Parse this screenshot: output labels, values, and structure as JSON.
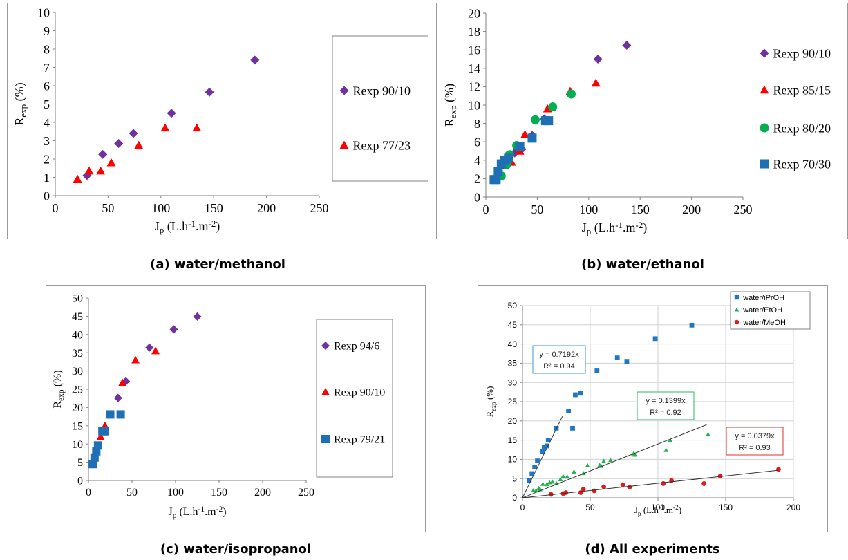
{
  "colors": {
    "purple": "#7030A0",
    "red": "#FF0000",
    "green": "#00B050",
    "blue": "#1F6FB5",
    "d_blue": "#1F77C8",
    "d_green": "#22B14C",
    "d_red": "#E31A1C",
    "box_blue": "#3C9BD6",
    "box_green": "#2EB85C",
    "box_red": "#E03030"
  },
  "chart_data": [
    {
      "id": "a",
      "type": "scatter",
      "caption": "(a) water/methanol",
      "xlabel_main": "J",
      "xlabel_sub": "p",
      "xlabel_rest": " (L.h",
      "xlabel_sup1": "-1",
      "xlabel_mid": ".m",
      "xlabel_sup2": "-2",
      "xlabel_end": ")",
      "ylabel_main": "R",
      "ylabel_sub": "exp",
      "ylabel_rest": " (%)",
      "xlim": [
        0,
        250
      ],
      "ylim": [
        0,
        10
      ],
      "xticks": [
        "0",
        "50",
        "100",
        "150",
        "200",
        "250"
      ],
      "yticks": [
        "0",
        "1",
        "2",
        "3",
        "4",
        "5",
        "6",
        "7",
        "8",
        "9",
        "10"
      ],
      "series": [
        {
          "name": "Rexp 90/10",
          "marker": "diamond",
          "color": "#7030A0",
          "points": [
            [
              30,
              1.1
            ],
            [
              45,
              2.25
            ],
            [
              60,
              2.85
            ],
            [
              74,
              3.4
            ],
            [
              110,
              4.5
            ],
            [
              146,
              5.65
            ],
            [
              189,
              7.4
            ]
          ]
        },
        {
          "name": "Rexp 77/23",
          "marker": "triangle",
          "color": "#FF0000",
          "points": [
            [
              21,
              0.9
            ],
            [
              32,
              1.35
            ],
            [
              43,
              1.35
            ],
            [
              53,
              1.8
            ],
            [
              79,
              2.75
            ],
            [
              104,
              3.7
            ],
            [
              134,
              3.7
            ]
          ]
        }
      ]
    },
    {
      "id": "b",
      "type": "scatter",
      "caption": "(b) water/ethanol",
      "xlabel_main": "J",
      "xlabel_sub": "p",
      "xlabel_rest": " (L.h",
      "xlabel_sup1": "-1",
      "xlabel_mid": ".m",
      "xlabel_sup2": "-2",
      "xlabel_end": ")",
      "ylabel_main": "R",
      "ylabel_sub": "exp",
      "ylabel_rest": " (%)",
      "xlim": [
        0,
        250
      ],
      "ylim": [
        0,
        20
      ],
      "xticks": [
        "0",
        "50",
        "100",
        "150",
        "200",
        "250"
      ],
      "yticks": [
        "0",
        "2",
        "4",
        "6",
        "8",
        "10",
        "12",
        "14",
        "16",
        "18",
        "20"
      ],
      "series": [
        {
          "name": "Rexp 90/10",
          "marker": "diamond",
          "color": "#7030A0",
          "points": [
            [
              12,
              2.5
            ],
            [
              20,
              3.6
            ],
            [
              28,
              4.8
            ],
            [
              35,
              5.2
            ],
            [
              45,
              6.7
            ],
            [
              57,
              8.5
            ],
            [
              109,
              15.0
            ],
            [
              137,
              16.5
            ]
          ]
        },
        {
          "name": "Rexp 85/15",
          "marker": "triangle",
          "color": "#FF0000",
          "points": [
            [
              13,
              2.2
            ],
            [
              18,
              3.4
            ],
            [
              25,
              3.8
            ],
            [
              33,
              5.0
            ],
            [
              38,
              6.8
            ],
            [
              60,
              9.6
            ],
            [
              82,
              11.5
            ],
            [
              107,
              12.4
            ]
          ]
        },
        {
          "name": "Rexp 80/20",
          "marker": "circle",
          "color": "#00B050",
          "points": [
            [
              15,
              2.3
            ],
            [
              20,
              3.5
            ],
            [
              23,
              4.6
            ],
            [
              30,
              5.6
            ],
            [
              48,
              8.4
            ],
            [
              65,
              9.8
            ],
            [
              83,
              11.2
            ]
          ]
        },
        {
          "name": "Rexp 70/30",
          "marker": "square",
          "color": "#1F6FB5",
          "points": [
            [
              8,
              1.9
            ],
            [
              10,
              1.9
            ],
            [
              12,
              2.8
            ],
            [
              15,
              3.6
            ],
            [
              18,
              4.0
            ],
            [
              22,
              4.2
            ],
            [
              33,
              5.5
            ],
            [
              45,
              6.4
            ],
            [
              58,
              8.3
            ],
            [
              61,
              8.3
            ]
          ]
        }
      ]
    },
    {
      "id": "c",
      "type": "scatter",
      "caption": "(c) water/isopropanol",
      "xlabel_main": "J",
      "xlabel_sub": "p",
      "xlabel_rest": " (L.h",
      "xlabel_sup1": "-1",
      "xlabel_mid": ".m",
      "xlabel_sup2": "-2",
      "xlabel_end": ")",
      "ylabel_main": "R",
      "ylabel_sub": "exp",
      "ylabel_rest": " (%)",
      "xlim": [
        0,
        250
      ],
      "ylim": [
        0,
        50
      ],
      "xticks": [
        "0",
        "50",
        "100",
        "150",
        "200",
        "250"
      ],
      "yticks": [
        "0",
        "5",
        "10",
        "15",
        "20",
        "25",
        "30",
        "35",
        "40",
        "45",
        "50"
      ],
      "series": [
        {
          "name": "Rexp 94/6",
          "marker": "diamond",
          "color": "#7030A0",
          "points": [
            [
              34,
              22.6
            ],
            [
              43,
              27.2
            ],
            [
              70,
              36.4
            ],
            [
              98,
              41.4
            ],
            [
              125,
              44.9
            ]
          ]
        },
        {
          "name": "Rexp 90/10",
          "marker": "triangle",
          "color": "#FF0000",
          "points": [
            [
              14,
              12.0
            ],
            [
              19,
              15.0
            ],
            [
              39,
              26.8
            ],
            [
              54,
              33.0
            ],
            [
              77,
              35.5
            ]
          ]
        },
        {
          "name": "Rexp 79/21",
          "marker": "square",
          "color": "#1F6FB5",
          "points": [
            [
              5,
              4.5
            ],
            [
              7,
              6.3
            ],
            [
              9,
              8.0
            ],
            [
              11,
              9.6
            ],
            [
              16,
              13.5
            ],
            [
              19,
              13.5
            ],
            [
              25,
              18.1
            ],
            [
              37,
              18.1
            ]
          ]
        }
      ]
    },
    {
      "id": "d",
      "type": "scatter",
      "caption": "(d) All experiments",
      "xlabel_main": "J",
      "xlabel_sub": "p",
      "xlabel_rest": " (L.h",
      "xlabel_sup1": "-1",
      "xlabel_mid": ".m",
      "xlabel_sup2": "-2",
      "xlabel_end": ")",
      "ylabel_main": "R",
      "ylabel_sub": "exp",
      "ylabel_rest": " (%)",
      "xlim": [
        0,
        200
      ],
      "ylim": [
        0,
        50
      ],
      "xticks": [
        "0",
        "50",
        "100",
        "150",
        "200"
      ],
      "yticks": [
        "0",
        "5",
        "10",
        "15",
        "20",
        "25",
        "30",
        "35",
        "40",
        "45",
        "50"
      ],
      "grid": true,
      "series": [
        {
          "name": "water/iPrOH",
          "marker": "square",
          "color": "#1F77C8",
          "points": [
            [
              5,
              4.5
            ],
            [
              7,
              6.3
            ],
            [
              9,
              8.0
            ],
            [
              11,
              9.6
            ],
            [
              15,
              12.0
            ],
            [
              16,
              13.1
            ],
            [
              18,
              13.5
            ],
            [
              19,
              15.0
            ],
            [
              25,
              18.1
            ],
            [
              37,
              18.1
            ],
            [
              34,
              22.6
            ],
            [
              39,
              26.8
            ],
            [
              43,
              27.2
            ],
            [
              55,
              33.0
            ],
            [
              70,
              36.4
            ],
            [
              77,
              35.5
            ],
            [
              98,
              41.4
            ],
            [
              125,
              44.9
            ]
          ]
        },
        {
          "name": "water/EtOH",
          "marker": "triangle",
          "color": "#22B14C",
          "points": [
            [
              8,
              1.9
            ],
            [
              10,
              1.9
            ],
            [
              12,
              2.5
            ],
            [
              13,
              2.2
            ],
            [
              15,
              3.6
            ],
            [
              18,
              3.5
            ],
            [
              20,
              4.0
            ],
            [
              22,
              4.2
            ],
            [
              25,
              3.8
            ],
            [
              28,
              4.8
            ],
            [
              30,
              5.6
            ],
            [
              33,
              5.5
            ],
            [
              38,
              6.8
            ],
            [
              45,
              6.4
            ],
            [
              48,
              8.4
            ],
            [
              57,
              8.5
            ],
            [
              58,
              8.3
            ],
            [
              60,
              9.6
            ],
            [
              65,
              9.8
            ],
            [
              82,
              11.5
            ],
            [
              83,
              11.2
            ],
            [
              106,
              12.4
            ],
            [
              109,
              15.0
            ],
            [
              137,
              16.5
            ]
          ]
        },
        {
          "name": "water/MeOH",
          "marker": "circle",
          "color": "#E31A1C",
          "points": [
            [
              21,
              0.9
            ],
            [
              30,
              1.1
            ],
            [
              32,
              1.35
            ],
            [
              43,
              1.35
            ],
            [
              45,
              2.25
            ],
            [
              53,
              1.8
            ],
            [
              60,
              2.85
            ],
            [
              74,
              3.4
            ],
            [
              79,
              2.75
            ],
            [
              104,
              3.7
            ],
            [
              110,
              4.5
            ],
            [
              134,
              3.7
            ],
            [
              146,
              5.65
            ],
            [
              189,
              7.4
            ]
          ]
        }
      ],
      "fits": [
        {
          "slope": 0.7192,
          "color": "#3C9BD6",
          "line1": "y = 0.7192x",
          "line2": "R² = 0.94"
        },
        {
          "slope": 0.1399,
          "color": "#2EB85C",
          "line1": "y = 0.1399x",
          "line2": "R² = 0.92"
        },
        {
          "slope": 0.0379,
          "color": "#E03030",
          "line1": "y = 0.0379x",
          "line2": "R² = 0.93"
        }
      ]
    }
  ]
}
